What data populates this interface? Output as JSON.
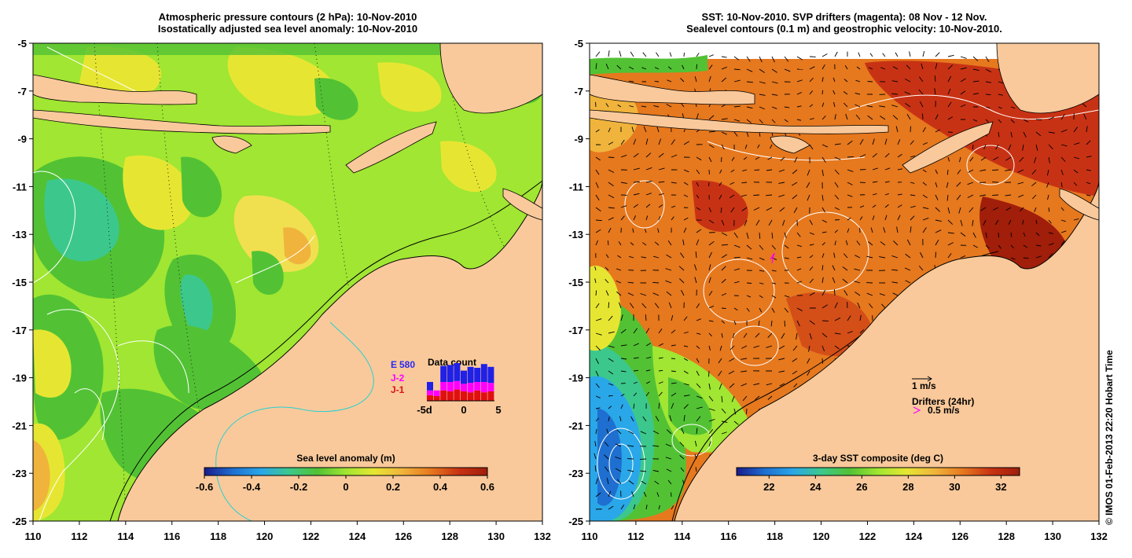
{
  "left_panel": {
    "title_line1": "Atmospheric pressure contours (2 hPa): 10-Nov-2010",
    "title_line2": "Isostatically adjusted sea level anomaly: 10-Nov-2010",
    "colorbar_label": "Sea level anomaly (m)",
    "colorbar_ticks": [
      "-0.6",
      "-0.4",
      "-0.2",
      "0",
      "0.2",
      "0.4",
      "0.6"
    ],
    "colors": [
      "#1a1a8c",
      "#1e6fd0",
      "#2aa7e8",
      "#3cc88c",
      "#52c234",
      "#a0e632",
      "#e6e632",
      "#f0b43c",
      "#e6781e",
      "#c83214",
      "#a01e0a"
    ],
    "inset": {
      "title": "Data count",
      "legend": [
        "E",
        "580",
        "J-2",
        "J-1"
      ],
      "x_ticks": [
        "-5d",
        "0",
        "5"
      ],
      "bars": [
        {
          "blue": 0.18,
          "magenta": 0.1,
          "red": 0.12
        },
        {
          "blue": 0.0,
          "magenta": 0.12,
          "red": 0.1
        },
        {
          "blue": 0.34,
          "magenta": 0.18,
          "red": 0.22
        },
        {
          "blue": 0.36,
          "magenta": 0.2,
          "red": 0.2
        },
        {
          "blue": 0.38,
          "magenta": 0.18,
          "red": 0.24
        },
        {
          "blue": 0.28,
          "magenta": 0.16,
          "red": 0.2
        },
        {
          "blue": 0.34,
          "magenta": 0.2,
          "red": 0.18
        },
        {
          "blue": 0.3,
          "magenta": 0.18,
          "red": 0.22
        },
        {
          "blue": 0.38,
          "magenta": 0.22,
          "red": 0.18
        },
        {
          "blue": 0.34,
          "magenta": 0.18,
          "red": 0.2
        }
      ]
    }
  },
  "right_panel": {
    "title_line1": "SST: 10-Nov-2010. SVP drifters (magenta): 08 Nov - 12 Nov.",
    "title_line2": "Sealevel contours (0.1 m) and geostrophic velocity: 10-Nov-2010.",
    "colorbar_label": "3-day SST composite (deg C)",
    "colorbar_ticks": [
      "22",
      "24",
      "26",
      "28",
      "30",
      "32"
    ],
    "colors": [
      "#1a1a8c",
      "#1e6fd0",
      "#2aa7e8",
      "#3cc88c",
      "#52c234",
      "#a0e632",
      "#e6e632",
      "#f0b43c",
      "#e6781e",
      "#c83214",
      "#a01e0a"
    ],
    "legend_velocity": "1 m/s",
    "legend_drifters": "Drifters (24hr)",
    "legend_drifter_speed": "0.5 m/s"
  },
  "axes": {
    "y_ticks": [
      "-5",
      "-7",
      "-9",
      "-11",
      "-13",
      "-15",
      "-17",
      "-19",
      "-21",
      "-23",
      "-25"
    ],
    "x_ticks": [
      "110",
      "112",
      "114",
      "116",
      "118",
      "120",
      "122",
      "124",
      "126",
      "128",
      "130",
      "132"
    ]
  },
  "credit": "© IMOS 01-Feb-2013 22:20 Hobart Time",
  "land_color": "#f9c99b"
}
